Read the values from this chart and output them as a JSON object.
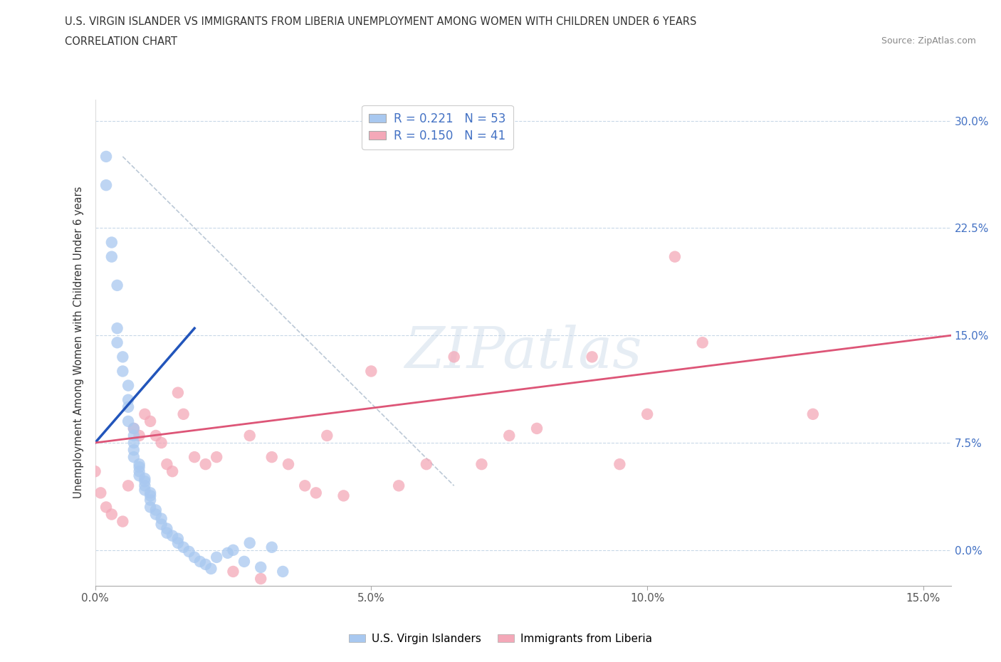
{
  "title_line1": "U.S. VIRGIN ISLANDER VS IMMIGRANTS FROM LIBERIA UNEMPLOYMENT AMONG WOMEN WITH CHILDREN UNDER 6 YEARS",
  "title_line2": "CORRELATION CHART",
  "source": "Source: ZipAtlas.com",
  "ylabel": "Unemployment Among Women with Children Under 6 years",
  "xlim": [
    0.0,
    0.155
  ],
  "ylim": [
    -0.025,
    0.315
  ],
  "yticks": [
    0.0,
    0.075,
    0.15,
    0.225,
    0.3
  ],
  "ytick_labels": [
    "0.0%",
    "7.5%",
    "15.0%",
    "22.5%",
    "30.0%"
  ],
  "xticks": [
    0.0,
    0.05,
    0.1,
    0.15
  ],
  "xtick_labels": [
    "0.0%",
    "5.0%",
    "10.0%",
    "15.0%"
  ],
  "color_vi": "#A8C8F0",
  "color_li": "#F4A8B8",
  "line_color_vi": "#2255BB",
  "line_color_li": "#DD5577",
  "scatter_vi_x": [
    0.002,
    0.002,
    0.003,
    0.003,
    0.004,
    0.004,
    0.004,
    0.005,
    0.005,
    0.006,
    0.006,
    0.006,
    0.006,
    0.007,
    0.007,
    0.007,
    0.007,
    0.007,
    0.008,
    0.008,
    0.008,
    0.008,
    0.009,
    0.009,
    0.009,
    0.009,
    0.01,
    0.01,
    0.01,
    0.01,
    0.011,
    0.011,
    0.012,
    0.012,
    0.013,
    0.013,
    0.014,
    0.015,
    0.015,
    0.016,
    0.017,
    0.018,
    0.019,
    0.02,
    0.021,
    0.022,
    0.024,
    0.025,
    0.027,
    0.028,
    0.03,
    0.032,
    0.034
  ],
  "scatter_vi_y": [
    0.275,
    0.255,
    0.215,
    0.205,
    0.185,
    0.155,
    0.145,
    0.135,
    0.125,
    0.115,
    0.105,
    0.1,
    0.09,
    0.085,
    0.08,
    0.075,
    0.07,
    0.065,
    0.06,
    0.058,
    0.055,
    0.052,
    0.05,
    0.048,
    0.045,
    0.042,
    0.04,
    0.038,
    0.035,
    0.03,
    0.028,
    0.025,
    0.022,
    0.018,
    0.015,
    0.012,
    0.01,
    0.008,
    0.005,
    0.002,
    -0.001,
    -0.005,
    -0.008,
    -0.01,
    -0.013,
    -0.005,
    -0.002,
    0.0,
    -0.008,
    0.005,
    -0.012,
    0.002,
    -0.015
  ],
  "scatter_li_x": [
    0.0,
    0.001,
    0.002,
    0.003,
    0.005,
    0.006,
    0.007,
    0.008,
    0.009,
    0.01,
    0.011,
    0.012,
    0.013,
    0.014,
    0.015,
    0.016,
    0.018,
    0.02,
    0.022,
    0.025,
    0.028,
    0.03,
    0.032,
    0.035,
    0.038,
    0.04,
    0.042,
    0.045,
    0.05,
    0.055,
    0.06,
    0.065,
    0.07,
    0.075,
    0.08,
    0.09,
    0.095,
    0.1,
    0.105,
    0.11,
    0.13
  ],
  "scatter_li_y": [
    0.055,
    0.04,
    0.03,
    0.025,
    0.02,
    0.045,
    0.085,
    0.08,
    0.095,
    0.09,
    0.08,
    0.075,
    0.06,
    0.055,
    0.11,
    0.095,
    0.065,
    0.06,
    0.065,
    -0.015,
    0.08,
    -0.02,
    0.065,
    0.06,
    0.045,
    0.04,
    0.08,
    0.038,
    0.125,
    0.045,
    0.06,
    0.135,
    0.06,
    0.08,
    0.085,
    0.135,
    0.06,
    0.095,
    0.205,
    0.145,
    0.095
  ],
  "trendline_x": [
    0.005,
    0.065
  ],
  "trendline_y": [
    0.275,
    0.045
  ],
  "vi_line_x": [
    0.0,
    0.018
  ],
  "vi_line_y": [
    0.075,
    0.155
  ],
  "li_line_x": [
    0.0,
    0.155
  ],
  "li_line_y": [
    0.075,
    0.15
  ],
  "legend_label_vi": "U.S. Virgin Islanders",
  "legend_label_li": "Immigrants from Liberia"
}
